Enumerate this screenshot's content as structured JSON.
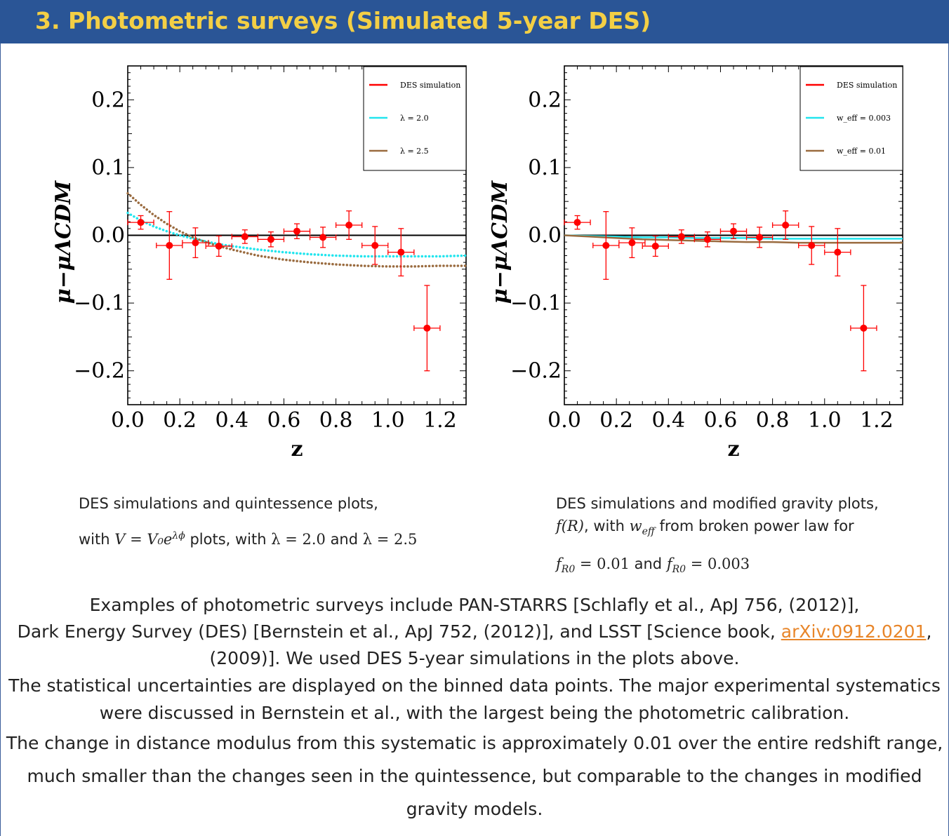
{
  "header": {
    "title": "3. Photometric surveys (Simulated 5-year DES)"
  },
  "chart_data": [
    {
      "type": "scatter",
      "xlabel": "z",
      "ylabel": "μ−μΛCDM",
      "xlim": [
        0.0,
        1.3
      ],
      "ylim": [
        -0.25,
        0.25
      ],
      "xticks": [
        "0.0",
        "0.2",
        "0.4",
        "0.6",
        "0.8",
        "1.0",
        "1.2"
      ],
      "yticks": [
        "0.2",
        "0.1",
        "0.0",
        "−0.1",
        "−0.2"
      ],
      "legend_position": "top-right",
      "legend": [
        "DES simulation",
        "λ = 2.0",
        "λ = 2.5"
      ],
      "colors": {
        "data": "#ff0000",
        "series1": "#22e5ee",
        "series2": "#9a6b3f"
      },
      "points": [
        {
          "x": 0.05,
          "y": 0.019,
          "xerr": 0.05,
          "yerr": 0.01
        },
        {
          "x": 0.16,
          "y": -0.015,
          "xerr": 0.05,
          "yerr": 0.05
        },
        {
          "x": 0.26,
          "y": -0.011,
          "xerr": 0.05,
          "yerr": 0.022
        },
        {
          "x": 0.35,
          "y": -0.016,
          "xerr": 0.05,
          "yerr": 0.015
        },
        {
          "x": 0.45,
          "y": -0.002,
          "xerr": 0.05,
          "yerr": 0.01
        },
        {
          "x": 0.55,
          "y": -0.006,
          "xerr": 0.05,
          "yerr": 0.011
        },
        {
          "x": 0.65,
          "y": 0.006,
          "xerr": 0.05,
          "yerr": 0.011
        },
        {
          "x": 0.75,
          "y": -0.003,
          "xerr": 0.05,
          "yerr": 0.015
        },
        {
          "x": 0.85,
          "y": 0.015,
          "xerr": 0.05,
          "yerr": 0.021
        },
        {
          "x": 0.95,
          "y": -0.015,
          "xerr": 0.05,
          "yerr": 0.028
        },
        {
          "x": 1.05,
          "y": -0.025,
          "xerr": 0.05,
          "yerr": 0.035
        },
        {
          "x": 1.15,
          "y": -0.137,
          "xerr": 0.05,
          "yerr": 0.063
        }
      ],
      "series": [
        {
          "name": "λ = 2.0",
          "x": [
            0.0,
            0.05,
            0.1,
            0.15,
            0.2,
            0.25,
            0.3,
            0.35,
            0.4,
            0.5,
            0.6,
            0.7,
            0.8,
            0.9,
            1.0,
            1.1,
            1.2,
            1.3
          ],
          "y": [
            0.033,
            0.022,
            0.013,
            0.006,
            0.0,
            -0.005,
            -0.009,
            -0.013,
            -0.016,
            -0.021,
            -0.025,
            -0.028,
            -0.03,
            -0.031,
            -0.031,
            -0.031,
            -0.031,
            -0.03
          ]
        },
        {
          "name": "λ = 2.5",
          "x": [
            0.0,
            0.05,
            0.1,
            0.15,
            0.2,
            0.25,
            0.3,
            0.35,
            0.4,
            0.5,
            0.6,
            0.7,
            0.8,
            0.9,
            1.0,
            1.1,
            1.2,
            1.3
          ],
          "y": [
            0.062,
            0.045,
            0.03,
            0.017,
            0.006,
            -0.003,
            -0.01,
            -0.016,
            -0.021,
            -0.03,
            -0.036,
            -0.04,
            -0.043,
            -0.045,
            -0.046,
            -0.046,
            -0.045,
            -0.045
          ]
        }
      ]
    },
    {
      "type": "scatter",
      "xlabel": "z",
      "ylabel": "μ−μΛCDM",
      "xlim": [
        0.0,
        1.3
      ],
      "ylim": [
        -0.25,
        0.25
      ],
      "xticks": [
        "0.0",
        "0.2",
        "0.4",
        "0.6",
        "0.8",
        "1.0",
        "1.2"
      ],
      "yticks": [
        "0.2",
        "0.1",
        "0.0",
        "−0.1",
        "−0.2"
      ],
      "legend_position": "top-right",
      "legend": [
        "DES simulation",
        "w_eff = 0.003",
        "w_eff = 0.01"
      ],
      "colors": {
        "data": "#ff0000",
        "series1": "#22e5ee",
        "series2": "#9a6b3f"
      },
      "points": [
        {
          "x": 0.05,
          "y": 0.019,
          "xerr": 0.05,
          "yerr": 0.01
        },
        {
          "x": 0.16,
          "y": -0.015,
          "xerr": 0.05,
          "yerr": 0.05
        },
        {
          "x": 0.26,
          "y": -0.011,
          "xerr": 0.05,
          "yerr": 0.022
        },
        {
          "x": 0.35,
          "y": -0.016,
          "xerr": 0.05,
          "yerr": 0.015
        },
        {
          "x": 0.45,
          "y": -0.002,
          "xerr": 0.05,
          "yerr": 0.01
        },
        {
          "x": 0.55,
          "y": -0.006,
          "xerr": 0.05,
          "yerr": 0.011
        },
        {
          "x": 0.65,
          "y": 0.006,
          "xerr": 0.05,
          "yerr": 0.011
        },
        {
          "x": 0.75,
          "y": -0.003,
          "xerr": 0.05,
          "yerr": 0.015
        },
        {
          "x": 0.85,
          "y": 0.015,
          "xerr": 0.05,
          "yerr": 0.021
        },
        {
          "x": 0.95,
          "y": -0.015,
          "xerr": 0.05,
          "yerr": 0.028
        },
        {
          "x": 1.05,
          "y": -0.025,
          "xerr": 0.05,
          "yerr": 0.035
        },
        {
          "x": 1.15,
          "y": -0.137,
          "xerr": 0.05,
          "yerr": 0.063
        }
      ],
      "series": [
        {
          "name": "w_eff = 0.003",
          "x": [
            0.0,
            0.1,
            0.2,
            0.3,
            0.4,
            0.5,
            0.6,
            0.7,
            0.8,
            0.9,
            1.0,
            1.1,
            1.2,
            1.3
          ],
          "y": [
            0.0,
            -0.001,
            -0.002,
            -0.003,
            -0.003,
            -0.004,
            -0.004,
            -0.004,
            -0.005,
            -0.005,
            -0.005,
            -0.005,
            -0.005,
            -0.005
          ]
        },
        {
          "name": "w_eff = 0.01",
          "x": [
            0.0,
            0.1,
            0.2,
            0.3,
            0.4,
            0.5,
            0.6,
            0.7,
            0.8,
            0.9,
            1.0,
            1.1,
            1.2,
            1.3
          ],
          "y": [
            0.0,
            -0.002,
            -0.004,
            -0.006,
            -0.007,
            -0.008,
            -0.009,
            -0.01,
            -0.01,
            -0.011,
            -0.011,
            -0.011,
            -0.011,
            -0.011
          ]
        }
      ]
    }
  ],
  "captions": {
    "left_line1": "DES simulations and quintessence plots,",
    "left_line2_pre": "with ",
    "left_line2_eq": "V = V₀e",
    "left_line2_sup": "λϕ",
    "left_line2_post": " plots, with ",
    "left_lam1": "λ = 2.0",
    "left_and": " and ",
    "left_lam2": "λ = 2.5",
    "right_line1": "DES simulations and modified gravity plots,",
    "right_fR": "f(R)",
    "right_line2_mid": ", with ",
    "right_w": "w",
    "right_w_sub": "eff",
    "right_line2_post": " from broken power law for",
    "right_f1": "f",
    "right_f1_sub": "R0",
    "right_f1_val": " = 0.01",
    "right_line3_and": " and ",
    "right_f2": "f",
    "right_f2_sub": "R0",
    "right_f2_val": " = 0.003"
  },
  "body": {
    "p1_l1": "Examples of photometric surveys include PAN-STARRS [Schlafly et al., ApJ 756, (2012)],",
    "p1_l2_pre": "Dark Energy Survey (DES) [Bernstein et al., ApJ 752, (2012)], and LSST [Science book, ",
    "p1_link": "arXiv:0912.0201",
    "p1_l2_post": ",",
    "p1_l3": "(2009)]. We used DES 5-year simulations in the plots above.",
    "p2": "The statistical uncertainties are displayed on the binned data points. The major experimental systematics were discussed in Bernstein et al., with the largest being the photometric calibration.",
    "p3": "The change in distance modulus from this systematic is approximately 0.01 over the entire redshift range, much smaller than the changes seen in the quintessence, but comparable to the changes in modified gravity models."
  }
}
